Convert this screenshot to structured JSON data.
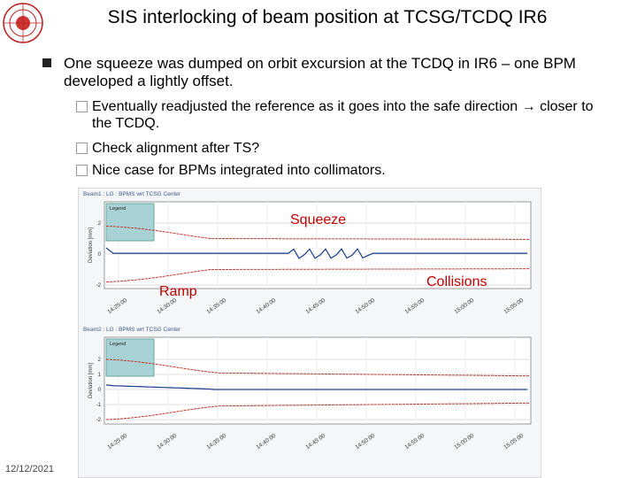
{
  "header": {
    "title": "SIS interlocking of beam position at TCSG/TCDQ IR6"
  },
  "bullets": [
    {
      "text": "One squeeze was dumped on orbit excursion at the TCDQ in IR6 – one BPM developed a lightly offset."
    }
  ],
  "sub_bullets": [
    {
      "text": "Eventually readjusted the reference as it goes into the safe direction → closer to the TCDQ."
    },
    {
      "text": "Check alignment after TS?"
    },
    {
      "text": "Nice case for BPMs integrated into collimators."
    }
  ],
  "figure": {
    "panels": [
      {
        "title": "Beam1 : LG : BPMS wrt TCSG Center",
        "y_label": "Deviation [mm]",
        "legend_title": "Legend",
        "y_ticks": [
          "2",
          "0",
          "-2"
        ],
        "time_labels": [
          "14:25:00",
          "14:30:00",
          "14:35:00",
          "14:40:00",
          "14:45:00",
          "14:50:00",
          "14:55:00",
          "15:00:00",
          "15:05:00"
        ]
      },
      {
        "title": "Beam2 : LG : BPMS wrt TCSG Center",
        "y_label": "Deviation [mm]",
        "legend_title": "Legend",
        "y_ticks": [
          "2",
          "1",
          "0",
          "-1",
          "-2"
        ],
        "time_labels": [
          "14:25:00",
          "14:30:00",
          "14:35:00",
          "14:40:00",
          "14:45:00",
          "14:50:00",
          "14:55:00",
          "15:00:00",
          "15:05:00"
        ]
      }
    ],
    "annotations": {
      "squeeze": "Squeeze",
      "ramp": "Ramp",
      "collisions": "Collisions"
    }
  },
  "footer": {
    "date": "12/12/2021"
  }
}
